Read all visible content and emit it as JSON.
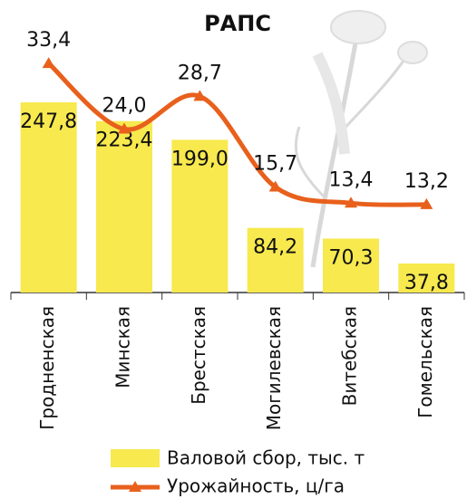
{
  "chart_data": {
    "type": "bar",
    "title": "РАПС",
    "categories": [
      "Гродненская",
      "Минская",
      "Брестская",
      "Могилевская",
      "Витебская",
      "Гомельская"
    ],
    "series": [
      {
        "name": "Валовой сбор, тыс. т",
        "type": "bar",
        "color": "#f7e94e",
        "values": [
          247.8,
          223.4,
          199.0,
          84.2,
          70.3,
          37.8
        ],
        "value_labels": [
          "247,8",
          "223,4",
          "199,0",
          "84,2",
          "70,3",
          "37,8"
        ]
      },
      {
        "name": "Урожайность, ц/га",
        "type": "line",
        "axis": "y2",
        "color": "#e8601c",
        "values": [
          33.4,
          24.0,
          28.7,
          15.7,
          13.4,
          13.2
        ],
        "value_labels": [
          "33,4",
          "24,0",
          "28,7",
          "15,7",
          "13,4",
          "13,2"
        ]
      }
    ],
    "ylim": [
      0,
      334
    ],
    "y2lim": [
      0.6,
      37.3
    ]
  }
}
